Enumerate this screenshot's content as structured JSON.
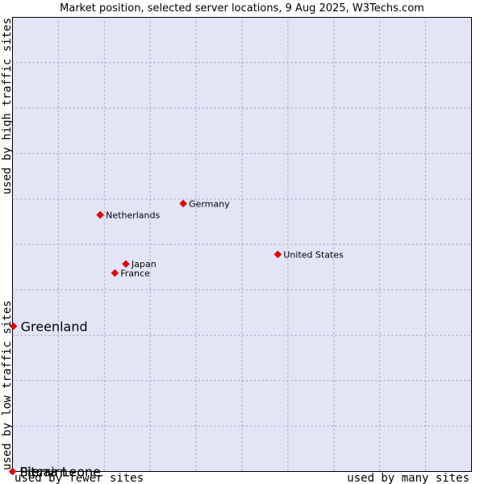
{
  "chart_data": {
    "type": "scatter",
    "title": "Market position, selected server locations, 9 Aug 2025, W3Techs.com",
    "xlabel_low": "used by fewer sites",
    "xlabel_high": "used by many sites",
    "ylabel_low": "used by low traffic sites",
    "ylabel_high": "used by high traffic sites",
    "xlim": [
      0,
      10
    ],
    "ylim": [
      0,
      10
    ],
    "grid": true,
    "colors": {
      "plot_bg": "#e3e5f7",
      "grid": "#9a9aaf",
      "marker": "#ee0000"
    },
    "points": [
      {
        "name": "Germany",
        "x": 3.72,
        "y": 5.9
      },
      {
        "name": "Netherlands",
        "x": 1.91,
        "y": 5.65
      },
      {
        "name": "United States",
        "x": 5.78,
        "y": 4.78
      },
      {
        "name": "Japan",
        "x": 2.47,
        "y": 4.57
      },
      {
        "name": "France",
        "x": 2.23,
        "y": 4.37
      },
      {
        "name": "Greenland",
        "x": 0.02,
        "y": 3.2
      },
      {
        "name": "Pitcairn",
        "x": 0.0,
        "y": 0.0
      },
      {
        "name": "Sierra Leone",
        "x": 0.0,
        "y": 0.0
      }
    ]
  }
}
